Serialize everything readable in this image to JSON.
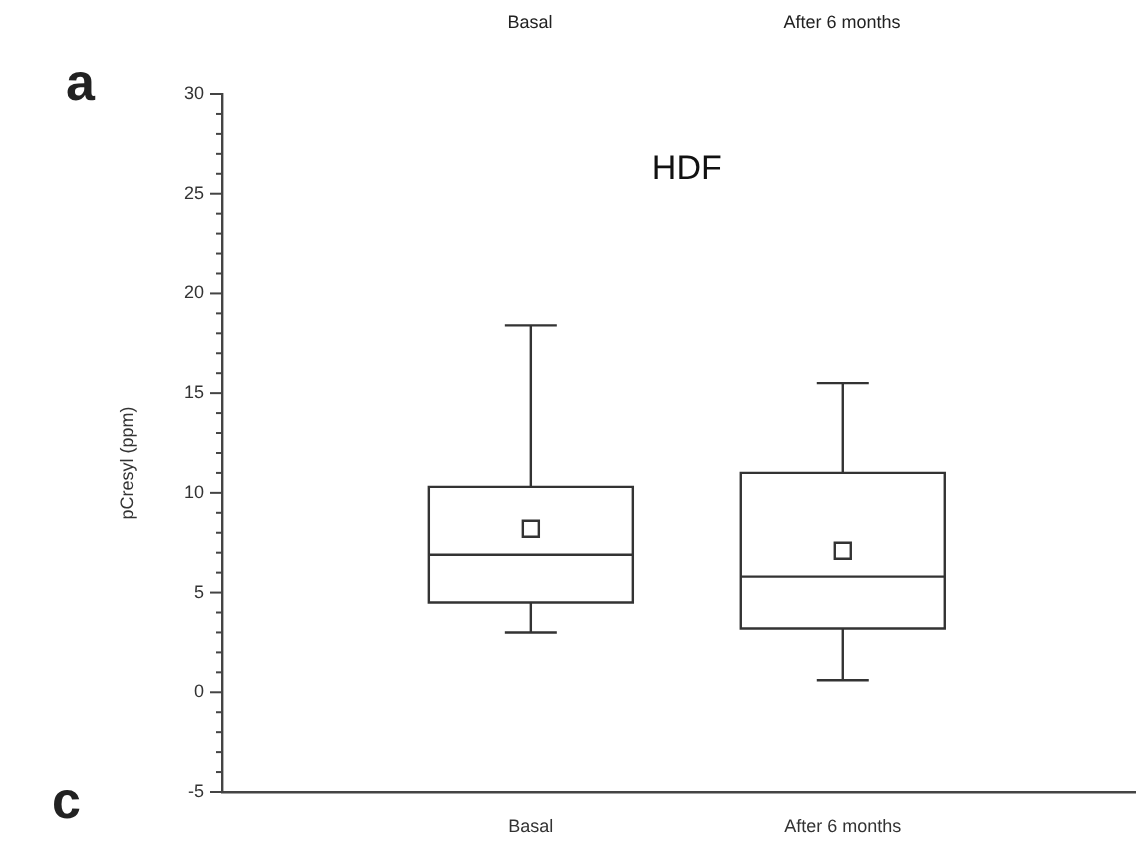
{
  "chart_data": {
    "type": "box",
    "title": "HDF",
    "ylabel": "pCresyl (ppm)",
    "annotations": [
      "a",
      "c",
      "Basal",
      "After 6 months"
    ],
    "categories": [
      "Basal",
      "After 6 months"
    ],
    "boxes": [
      {
        "low": 3.0,
        "q1": 4.5,
        "median": 6.9,
        "q3": 10.3,
        "high": 18.4,
        "mean": 8.2
      },
      {
        "low": 0.6,
        "q1": 3.2,
        "median": 5.8,
        "q3": 11.0,
        "high": 15.5,
        "mean": 7.1
      }
    ],
    "color": "#333333",
    "marker": "square",
    "ylim": [
      -5,
      30
    ],
    "yticks": [
      -5,
      {
        "value": -4,
        "label": null
      },
      {
        "value": -3,
        "label": null
      },
      {
        "value": -2,
        "label": null
      },
      {
        "value": -1,
        "label": null
      },
      0,
      {
        "value": 1,
        "label": null
      },
      {
        "value": 2,
        "label": null
      },
      {
        "value": 3,
        "label": null
      },
      {
        "value": 4,
        "label": null
      },
      5,
      {
        "value": 6,
        "label": null
      },
      {
        "value": 7,
        "label": null
      },
      {
        "value": 8,
        "label": null
      },
      {
        "value": 9,
        "label": null
      },
      10,
      {
        "value": 11,
        "label": null
      },
      {
        "value": 12,
        "label": null
      },
      {
        "value": 13,
        "label": null
      },
      {
        "value": 14,
        "label": null
      },
      15,
      {
        "value": 16,
        "label": null
      },
      {
        "value": 17,
        "label": null
      },
      {
        "value": 18,
        "label": null
      },
      {
        "value": 19,
        "label": null
      },
      20,
      {
        "value": 21,
        "label": null
      },
      {
        "value": 22,
        "label": null
      },
      {
        "value": 23,
        "label": null
      },
      {
        "value": 24,
        "label": null
      },
      25,
      {
        "value": 26,
        "label": null
      },
      {
        "value": 27,
        "label": null
      },
      {
        "value": 28,
        "label": null
      },
      {
        "value": 29,
        "label": null
      },
      30
    ],
    "grid": false,
    "legend": false
  }
}
